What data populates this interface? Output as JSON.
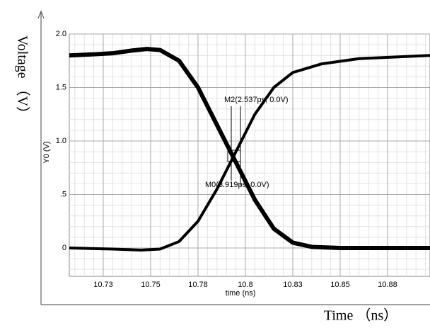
{
  "chart_data": {
    "type": "line",
    "xlabel": "time (ns)",
    "ylabel": "Y0 (V)",
    "outer_ylabel": "Voltage （V）",
    "outer_xlabel": "Time （ns）",
    "xlim": [
      10.7071,
      10.8974
    ],
    "xticks": [
      {
        "value": 10.725,
        "label": "10.73"
      },
      {
        "value": 10.75,
        "label": "10.75"
      },
      {
        "value": 10.775,
        "label": "10.78"
      },
      {
        "value": 10.8,
        "label": "10.8"
      },
      {
        "value": 10.825,
        "label": "10.83"
      },
      {
        "value": 10.85,
        "label": "10.85"
      },
      {
        "value": 10.875,
        "label": "10.88"
      }
    ],
    "ylim": [
      -0.265,
      2.0
    ],
    "yticks": [
      {
        "value": 2,
        "label": "2.0"
      },
      1.5,
      {
        "value": 1,
        "label": "1.0"
      },
      {
        "value": 0.5,
        "label": ".5"
      },
      0
    ],
    "grid": true,
    "series": [
      {
        "color": "#000000",
        "x": [
          10.7071,
          10.72,
          10.73,
          10.74,
          10.748,
          10.755,
          10.765,
          10.775,
          10.785,
          10.795,
          10.805,
          10.815,
          10.825,
          10.835,
          10.85,
          10.875,
          10.8974
        ],
        "values": [
          1.8,
          1.81,
          1.82,
          1.845,
          1.86,
          1.85,
          1.75,
          1.5,
          1.15,
          0.8,
          0.45,
          0.18,
          0.05,
          0.01,
          0,
          0,
          0
        ]
      },
      {
        "color": "#000000",
        "x": [
          10.7071,
          10.73,
          10.745,
          10.755,
          10.765,
          10.775,
          10.785,
          10.795,
          10.805,
          10.815,
          10.825,
          10.84,
          10.86,
          10.8974
        ],
        "values": [
          0,
          -0.01,
          -0.02,
          -0.01,
          0.06,
          0.25,
          0.55,
          0.9,
          1.25,
          1.5,
          1.64,
          1.72,
          1.77,
          1.8
        ]
      }
    ],
    "annotations": [
      {
        "text": "M2(2.537ps, 0.0V)"
      },
      {
        "text": "M0(3.919ps, 0.0V)"
      }
    ]
  }
}
